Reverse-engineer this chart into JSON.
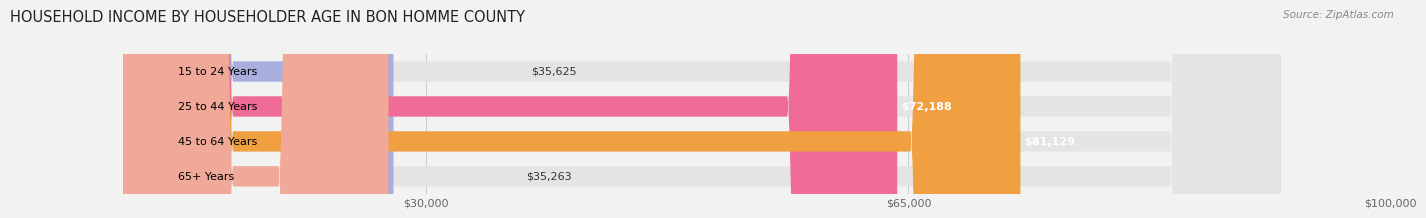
{
  "title": "HOUSEHOLD INCOME BY HOUSEHOLDER AGE IN BON HOMME COUNTY",
  "source": "Source: ZipAtlas.com",
  "categories": [
    "15 to 24 Years",
    "25 to 44 Years",
    "45 to 64 Years",
    "65+ Years"
  ],
  "values": [
    35625,
    72188,
    81129,
    35263
  ],
  "bar_colors": [
    "#a8aedd",
    "#f06b95",
    "#f0a040",
    "#f0a898"
  ],
  "bar_bg_color": "#e4e4e4",
  "value_labels": [
    "$35,625",
    "$72,188",
    "$81,129",
    "$35,263"
  ],
  "xmax": 100000,
  "xticks": [
    30000,
    65000,
    100000
  ],
  "xtick_labels": [
    "$30,000",
    "$65,000",
    "$100,000"
  ],
  "title_fontsize": 10.5,
  "label_fontsize": 8.0,
  "value_fontsize": 8.0,
  "source_fontsize": 7.5,
  "background_color": "#f2f2f2"
}
